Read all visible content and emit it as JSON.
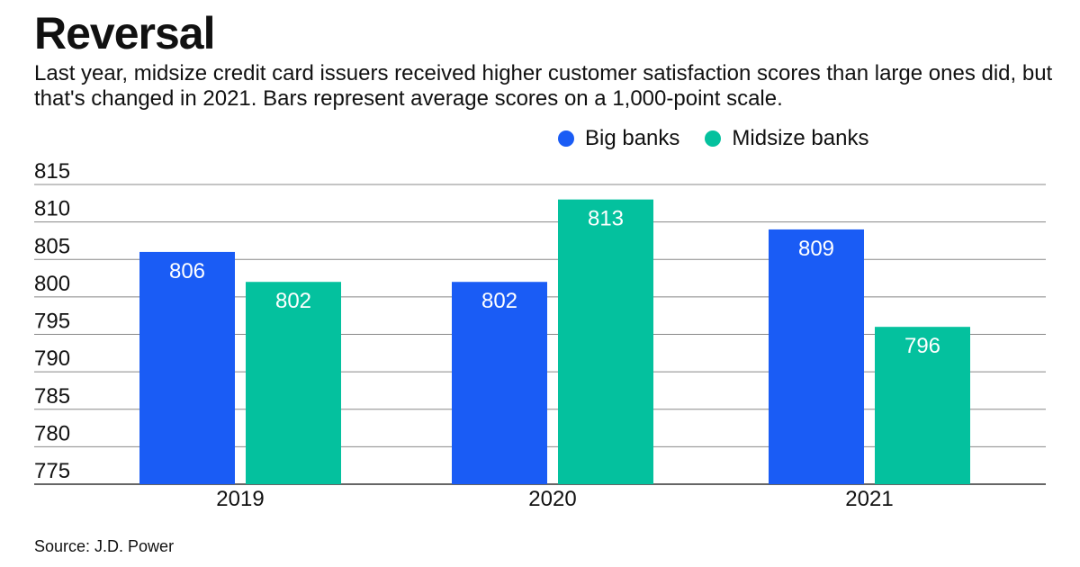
{
  "title": "Reversal",
  "subtitle": "Last year, midsize credit card issuers received higher customer satisfaction scores than large ones did, but that's changed in 2021. Bars represent average scores on a 1,000-point scale.",
  "source": "Source: J.D. Power",
  "colors": {
    "big_banks": "#1a5cf5",
    "midsize_banks": "#04c19e",
    "grid": "#888888"
  },
  "chart_data": {
    "type": "bar",
    "title": "Reversal",
    "xlabel": "",
    "ylabel": "",
    "categories": [
      "2019",
      "2020",
      "2021"
    ],
    "series": [
      {
        "name": "Big banks",
        "values": [
          806,
          802,
          809
        ],
        "color_key": "big_banks"
      },
      {
        "name": "Midsize banks",
        "values": [
          802,
          813,
          796
        ],
        "color_key": "midsize_banks"
      }
    ],
    "ylim": [
      775,
      815
    ],
    "yticks": [
      775,
      780,
      785,
      790,
      795,
      800,
      805,
      810,
      815
    ],
    "grid": true,
    "legend_position": "top-right"
  }
}
